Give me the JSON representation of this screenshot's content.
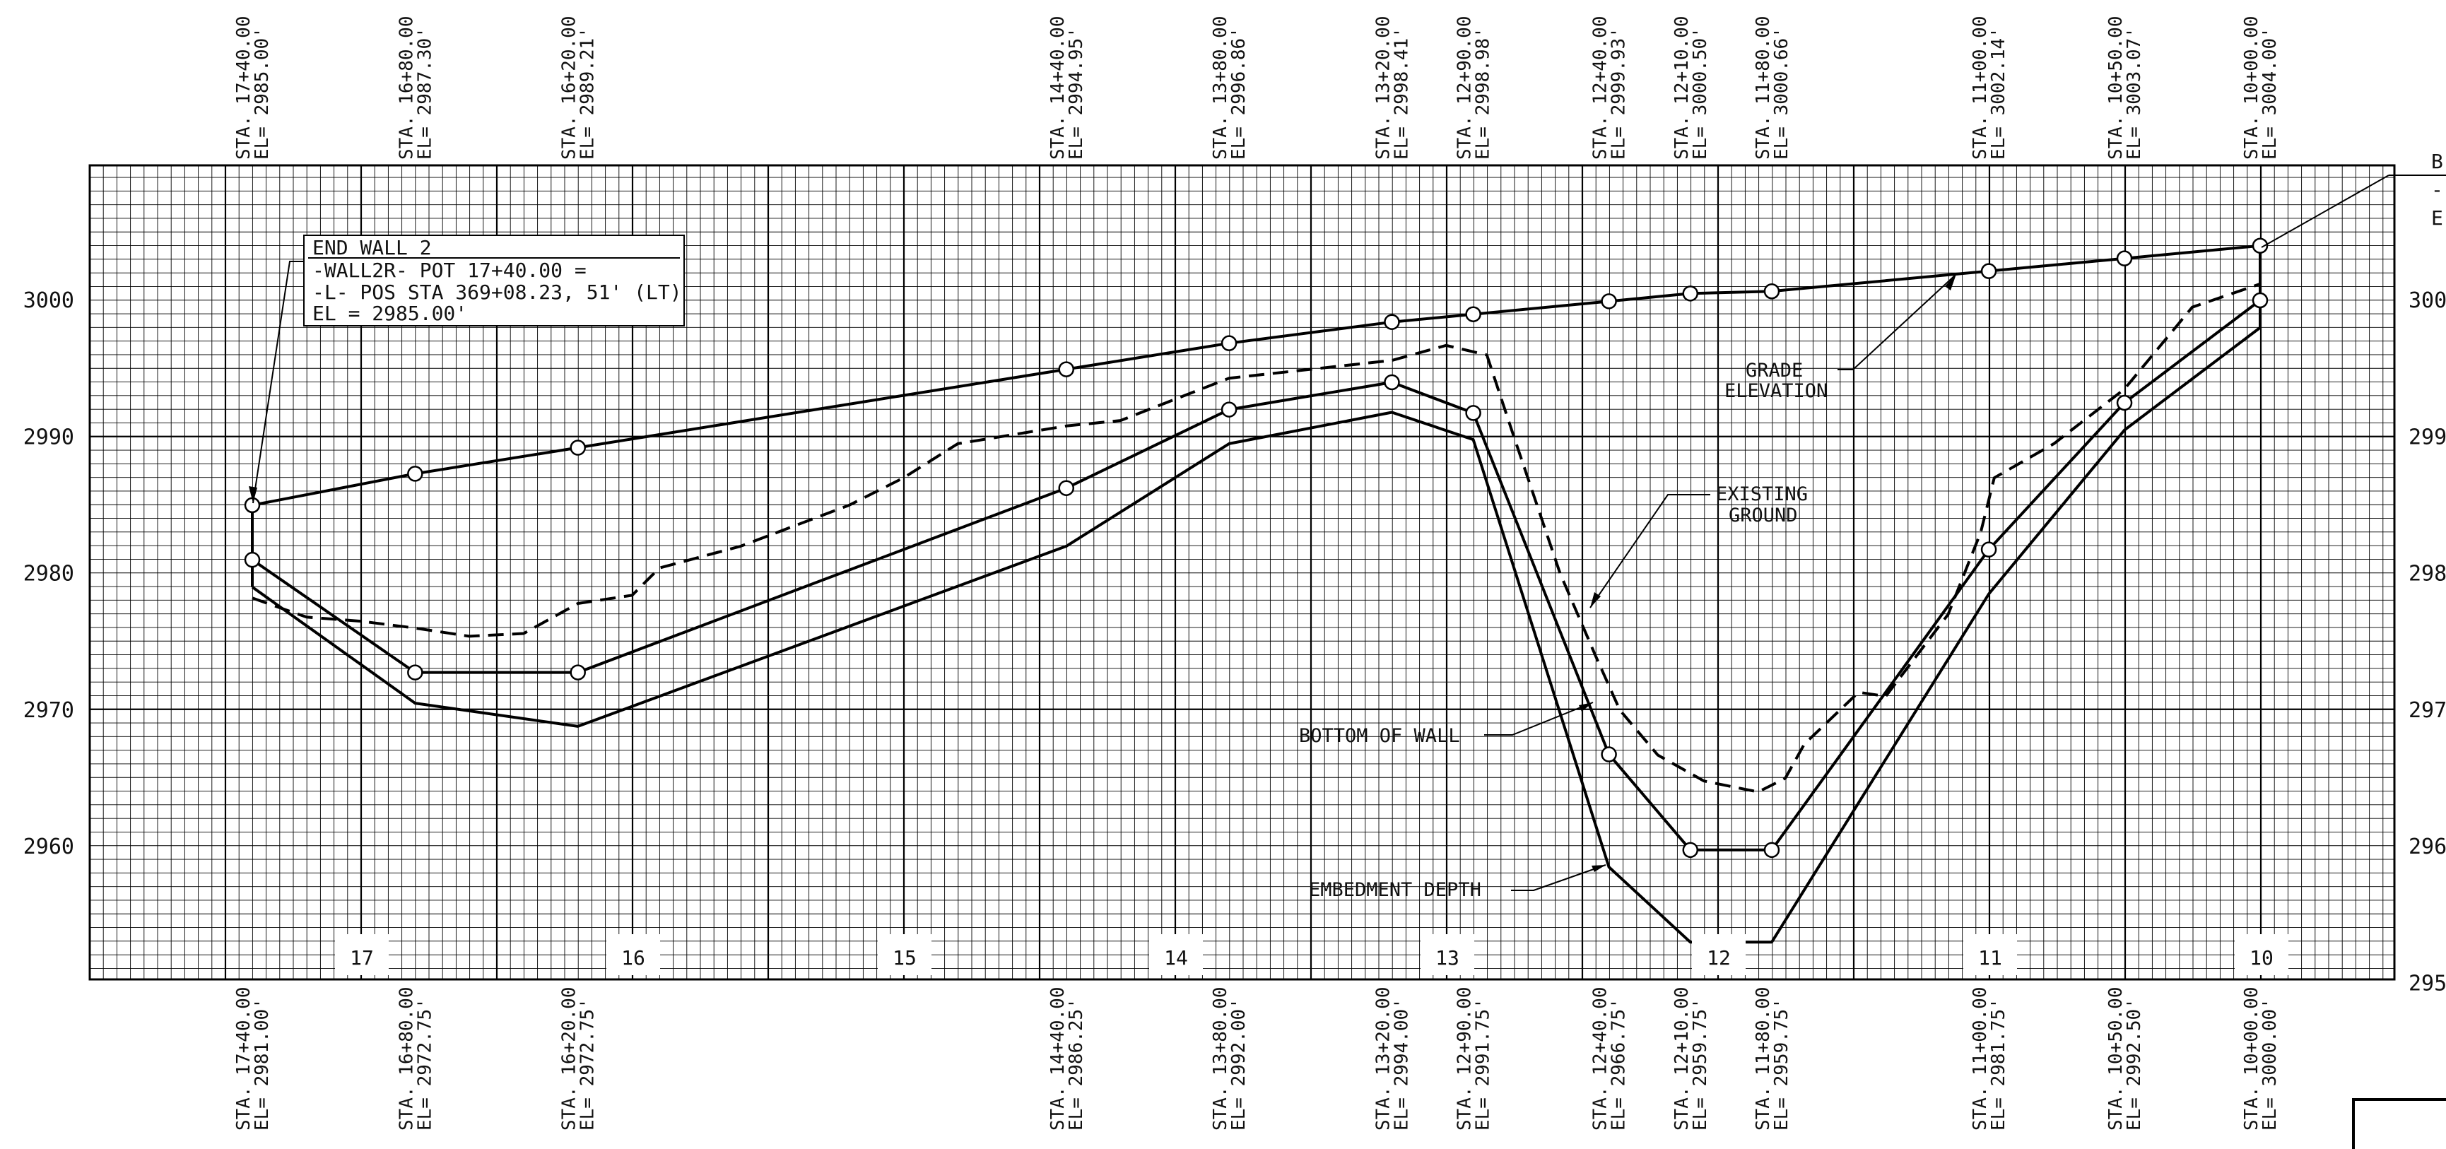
{
  "drawing": {
    "elev_ticks": [
      3000,
      2990,
      2980,
      2970,
      2960
    ],
    "right_elev_ticks": [
      "300",
      "299",
      "298",
      "297",
      "296",
      "295"
    ],
    "panels": [
      "17",
      "16",
      "15",
      "14",
      "13",
      "12",
      "11",
      "10"
    ],
    "callout_top": {
      "title": "END WALL 2",
      "line2": "-WALL2R- POT 17+40.00 =",
      "line3": "-L- POS STA 369+08.23, 51' (LT)",
      "line4": "EL = 2985.00'"
    },
    "callout_right": {
      "l1": "B",
      "l2": "-",
      "l3": "E"
    },
    "annotations": {
      "grade_1": "GRADE",
      "grade_2": "ELEVATION",
      "existing_1": "EXISTING",
      "existing_2": "GROUND",
      "bottom_of_wall": "BOTTOM OF WALL",
      "embedment_depth": "EMBEDMENT DEPTH"
    }
  },
  "chart_data": {
    "type": "line",
    "xlabel": "",
    "ylabel": "",
    "ylim": [
      2950,
      3010
    ],
    "grid": true,
    "top_stations": [
      {
        "sta": "STA. 17+40.00",
        "el": "EL= 2985.00'",
        "x": 1740,
        "y": 2985.0
      },
      {
        "sta": "STA. 16+80.00",
        "el": "EL= 2987.30'",
        "x": 1680,
        "y": 2987.3
      },
      {
        "sta": "STA. 16+20.00",
        "el": "EL= 2989.21'",
        "x": 1620,
        "y": 2989.21
      },
      {
        "sta": "STA. 14+40.00",
        "el": "EL= 2994.95'",
        "x": 1440,
        "y": 2994.95
      },
      {
        "sta": "STA. 13+80.00",
        "el": "EL= 2996.86'",
        "x": 1380,
        "y": 2996.86
      },
      {
        "sta": "STA. 13+20.00",
        "el": "EL= 2998.41'",
        "x": 1320,
        "y": 2998.41
      },
      {
        "sta": "STA. 12+90.00",
        "el": "EL= 2998.98'",
        "x": 1290,
        "y": 2998.98
      },
      {
        "sta": "STA. 12+40.00",
        "el": "EL= 2999.93'",
        "x": 1240,
        "y": 2999.93
      },
      {
        "sta": "STA. 12+10.00",
        "el": "EL= 3000.50'",
        "x": 1210,
        "y": 3000.5
      },
      {
        "sta": "STA. 11+80.00",
        "el": "EL= 3000.66'",
        "x": 1180,
        "y": 3000.66
      },
      {
        "sta": "STA. 11+00.00",
        "el": "EL= 3002.14'",
        "x": 1100,
        "y": 3002.14
      },
      {
        "sta": "STA. 10+50.00",
        "el": "EL= 3003.07'",
        "x": 1050,
        "y": 3003.07
      },
      {
        "sta": "STA. 10+00.00",
        "el": "EL= 3004.00'",
        "x": 1000,
        "y": 3004.0
      }
    ],
    "bottom_stations": [
      {
        "sta": "STA. 17+40.00",
        "el": "EL= 2981.00'",
        "x": 1740,
        "y": 2981.0
      },
      {
        "sta": "STA. 16+80.00",
        "el": "EL= 2972.75'",
        "x": 1680,
        "y": 2972.75
      },
      {
        "sta": "STA. 16+20.00",
        "el": "EL= 2972.75'",
        "x": 1620,
        "y": 2972.75
      },
      {
        "sta": "STA. 14+40.00",
        "el": "EL= 2986.25'",
        "x": 1440,
        "y": 2986.25
      },
      {
        "sta": "STA. 13+80.00",
        "el": "EL= 2992.00'",
        "x": 1380,
        "y": 2992.0
      },
      {
        "sta": "STA. 13+20.00",
        "el": "EL= 2994.00'",
        "x": 1320,
        "y": 2994.0
      },
      {
        "sta": "STA. 12+90.00",
        "el": "EL= 2991.75'",
        "x": 1290,
        "y": 2991.75
      },
      {
        "sta": "STA. 12+40.00",
        "el": "EL= 2966.75'",
        "x": 1240,
        "y": 2966.75
      },
      {
        "sta": "STA. 12+10.00",
        "el": "EL= 2959.75'",
        "x": 1210,
        "y": 2959.75
      },
      {
        "sta": "STA. 11+80.00",
        "el": "EL= 2959.75'",
        "x": 1180,
        "y": 2959.75
      },
      {
        "sta": "STA. 11+00.00",
        "el": "EL= 2981.75'",
        "x": 1100,
        "y": 2981.75
      },
      {
        "sta": "STA. 10+50.00",
        "el": "EL= 2992.50'",
        "x": 1050,
        "y": 2992.5
      },
      {
        "sta": "STA. 10+00.00",
        "el": "EL= 3000.00'",
        "x": 1000,
        "y": 3000.0
      }
    ],
    "embedment": [
      {
        "x": 1740,
        "y": 2979.0
      },
      {
        "x": 1680,
        "y": 2970.5
      },
      {
        "x": 1620,
        "y": 2968.8
      },
      {
        "x": 1440,
        "y": 2982.0
      },
      {
        "x": 1380,
        "y": 2989.5
      },
      {
        "x": 1320,
        "y": 2991.8
      },
      {
        "x": 1290,
        "y": 2989.8
      },
      {
        "x": 1240,
        "y": 2958.5
      },
      {
        "x": 1210,
        "y": 2953.0
      },
      {
        "x": 1180,
        "y": 2953.0
      },
      {
        "x": 1100,
        "y": 2978.5
      },
      {
        "x": 1050,
        "y": 2990.5
      },
      {
        "x": 1000,
        "y": 2998.0
      }
    ],
    "existing_ground": [
      {
        "x": 1740,
        "y": 2978.2
      },
      {
        "x": 1720,
        "y": 2976.8
      },
      {
        "x": 1700,
        "y": 2976.5
      },
      {
        "x": 1680,
        "y": 2976.0
      },
      {
        "x": 1660,
        "y": 2975.4
      },
      {
        "x": 1640,
        "y": 2975.6
      },
      {
        "x": 1620,
        "y": 2977.8
      },
      {
        "x": 1600,
        "y": 2978.4
      },
      {
        "x": 1590,
        "y": 2980.4
      },
      {
        "x": 1560,
        "y": 2982.0
      },
      {
        "x": 1520,
        "y": 2985.0
      },
      {
        "x": 1500,
        "y": 2987.0
      },
      {
        "x": 1480,
        "y": 2989.5
      },
      {
        "x": 1440,
        "y": 2990.8
      },
      {
        "x": 1420,
        "y": 2991.2
      },
      {
        "x": 1380,
        "y": 2994.3
      },
      {
        "x": 1320,
        "y": 2995.6
      },
      {
        "x": 1300,
        "y": 2996.7
      },
      {
        "x": 1285,
        "y": 2996.0
      },
      {
        "x": 1275,
        "y": 2990.0
      },
      {
        "x": 1258,
        "y": 2980.0
      },
      {
        "x": 1245,
        "y": 2974.0
      },
      {
        "x": 1236,
        "y": 2970.0
      },
      {
        "x": 1222,
        "y": 2966.7
      },
      {
        "x": 1205,
        "y": 2964.8
      },
      {
        "x": 1185,
        "y": 2964.0
      },
      {
        "x": 1175,
        "y": 2965.0
      },
      {
        "x": 1168,
        "y": 2967.5
      },
      {
        "x": 1148,
        "y": 2971.3
      },
      {
        "x": 1138,
        "y": 2971.0
      },
      {
        "x": 1115,
        "y": 2977.0
      },
      {
        "x": 1103,
        "y": 2983.0
      },
      {
        "x": 1098,
        "y": 2987.0
      },
      {
        "x": 1076,
        "y": 2989.5
      },
      {
        "x": 1050,
        "y": 2993.5
      },
      {
        "x": 1025,
        "y": 2999.5
      },
      {
        "x": 1000,
        "y": 3001.2
      }
    ]
  }
}
